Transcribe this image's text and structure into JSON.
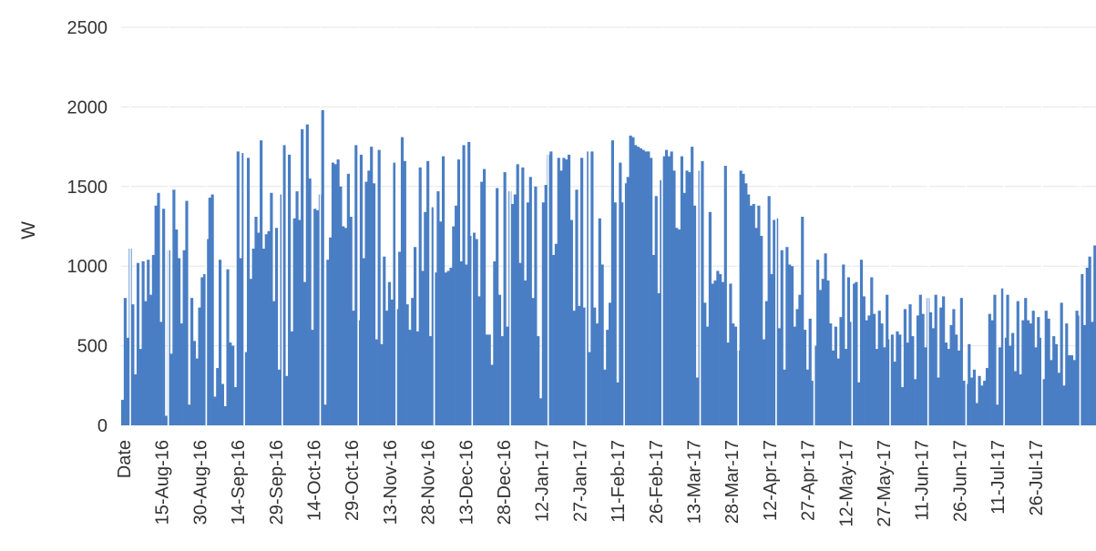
{
  "chart_data": {
    "type": "bar",
    "title": "",
    "ylabel": "W",
    "xlabel": "",
    "ylim": [
      0,
      2500
    ],
    "yticks": [
      0,
      500,
      1000,
      1500,
      2000,
      2500
    ],
    "grid": true,
    "legend": "none",
    "bar_color": "#4a7ec4",
    "x_tick_labels": [
      "Date",
      "15-Aug-16",
      "30-Aug-16",
      "14-Sep-16",
      "29-Sep-16",
      "14-Oct-16",
      "29-Oct-16",
      "13-Nov-16",
      "28-Nov-16",
      "13-Dec-16",
      "28-Dec-16",
      "12-Jan-17",
      "27-Jan-17",
      "11-Feb-17",
      "26-Feb-17",
      "13-Mar-17",
      "28-Mar-17",
      "12-Apr-17",
      "27-Apr-17",
      "12-May-17",
      "27-May-17",
      "11-Jun-17",
      "26-Jun-17",
      "11-Jul-17",
      "26-Jul-17"
    ],
    "series": [
      {
        "values": [
          160,
          800,
          550,
          1110,
          760,
          320,
          1020,
          480,
          1030,
          780,
          1040,
          820,
          1070,
          1380,
          1460,
          650,
          1360,
          60,
          1100,
          450,
          1480,
          1230,
          1050,
          640,
          1100,
          1410,
          130,
          800,
          530,
          420,
          740,
          930,
          950,
          1170,
          1430,
          1450,
          180,
          360,
          1040,
          260,
          120,
          980,
          520,
          500,
          240,
          1720,
          1050,
          1710,
          460,
          1680,
          920,
          1110,
          1310,
          1210,
          1790,
          1110,
          1200,
          1220,
          1460,
          780,
          1240,
          350,
          1450,
          1760,
          310,
          1700,
          590,
          1300,
          1470,
          1290,
          1860,
          900,
          1890,
          1550,
          600,
          1360,
          1350,
          1450,
          1980,
          130,
          1040,
          1180,
          1650,
          1640,
          1670,
          1500,
          1250,
          1240,
          1580,
          1310,
          720,
          1760,
          660,
          1700,
          1050,
          1530,
          1600,
          1750,
          1520,
          540,
          1730,
          510,
          1060,
          720,
          900,
          790,
          1650,
          730,
          1090,
          1810,
          1660,
          760,
          600,
          800,
          1120,
          590,
          1620,
          970,
          1340,
          1660,
          560,
          1370,
          960,
          1470,
          1280,
          1690,
          960,
          970,
          990,
          1250,
          1380,
          1670,
          1030,
          1760,
          1010,
          1780,
          1190,
          1210,
          1170,
          810,
          1530,
          1610,
          570,
          570,
          380,
          1030,
          1490,
          820,
          560,
          1590,
          620,
          1470,
          1390,
          1450,
          1640,
          1020,
          1620,
          910,
          1400,
          1560,
          800,
          1500,
          560,
          170,
          1400,
          1510,
          1700,
          1720,
          1070,
          1140,
          1680,
          1600,
          1680,
          1670,
          1700,
          1290,
          720,
          1480,
          750,
          1680,
          740,
          1720,
          460,
          1720,
          740,
          640,
          1300,
          1010,
          350,
          600,
          770,
          1790,
          1400,
          270,
          1650,
          1400,
          1520,
          1560,
          1820,
          1810,
          1760,
          1750,
          1740,
          1730,
          1720,
          1720,
          1680,
          1070,
          1440,
          830,
          1540,
          1690,
          1730,
          1690,
          1720,
          1600,
          1240,
          1230,
          1690,
          1460,
          1600,
          1590,
          1750,
          1380,
          300,
          1600,
          1660,
          770,
          620,
          1340,
          890,
          910,
          970,
          950,
          900,
          1630,
          520,
          890,
          640,
          620,
          470,
          1600,
          1580,
          1520,
          1450,
          1380,
          1390,
          1240,
          1380,
          1190,
          540,
          780,
          1440,
          950,
          1290,
          1300,
          610,
          1100,
          350,
          1120,
          1010,
          1000,
          620,
          730,
          820,
          1310,
          600,
          350,
          670,
          280,
          500,
          1040,
          850,
          920,
          1080,
          910,
          640,
          470,
          620,
          420,
          680,
          1010,
          480,
          930,
          650,
          890,
          900,
          270,
          1040,
          810,
          660,
          690,
          930,
          700,
          480,
          720,
          640,
          490,
          820,
          540,
          570,
          400,
          590,
          570,
          240,
          730,
          520,
          760,
          560,
          290,
          690,
          820,
          700,
          490,
          800,
          710,
          610,
          820,
          300,
          740,
          810,
          520,
          480,
          630,
          730,
          570,
          470,
          800,
          280,
          260,
          510,
          300,
          350,
          140,
          310,
          250,
          280,
          360,
          700,
          660,
          820,
          130,
          490,
          860,
          550,
          820,
          500,
          580,
          340,
          780,
          320,
          660,
          800,
          660,
          640,
          720,
          490,
          680,
          550,
          290,
          720,
          670,
          410,
          560,
          510,
          330,
          770,
          250,
          640,
          440,
          440,
          410,
          720,
          690,
          950,
          630,
          990,
          1060,
          650,
          1130
        ]
      }
    ]
  }
}
